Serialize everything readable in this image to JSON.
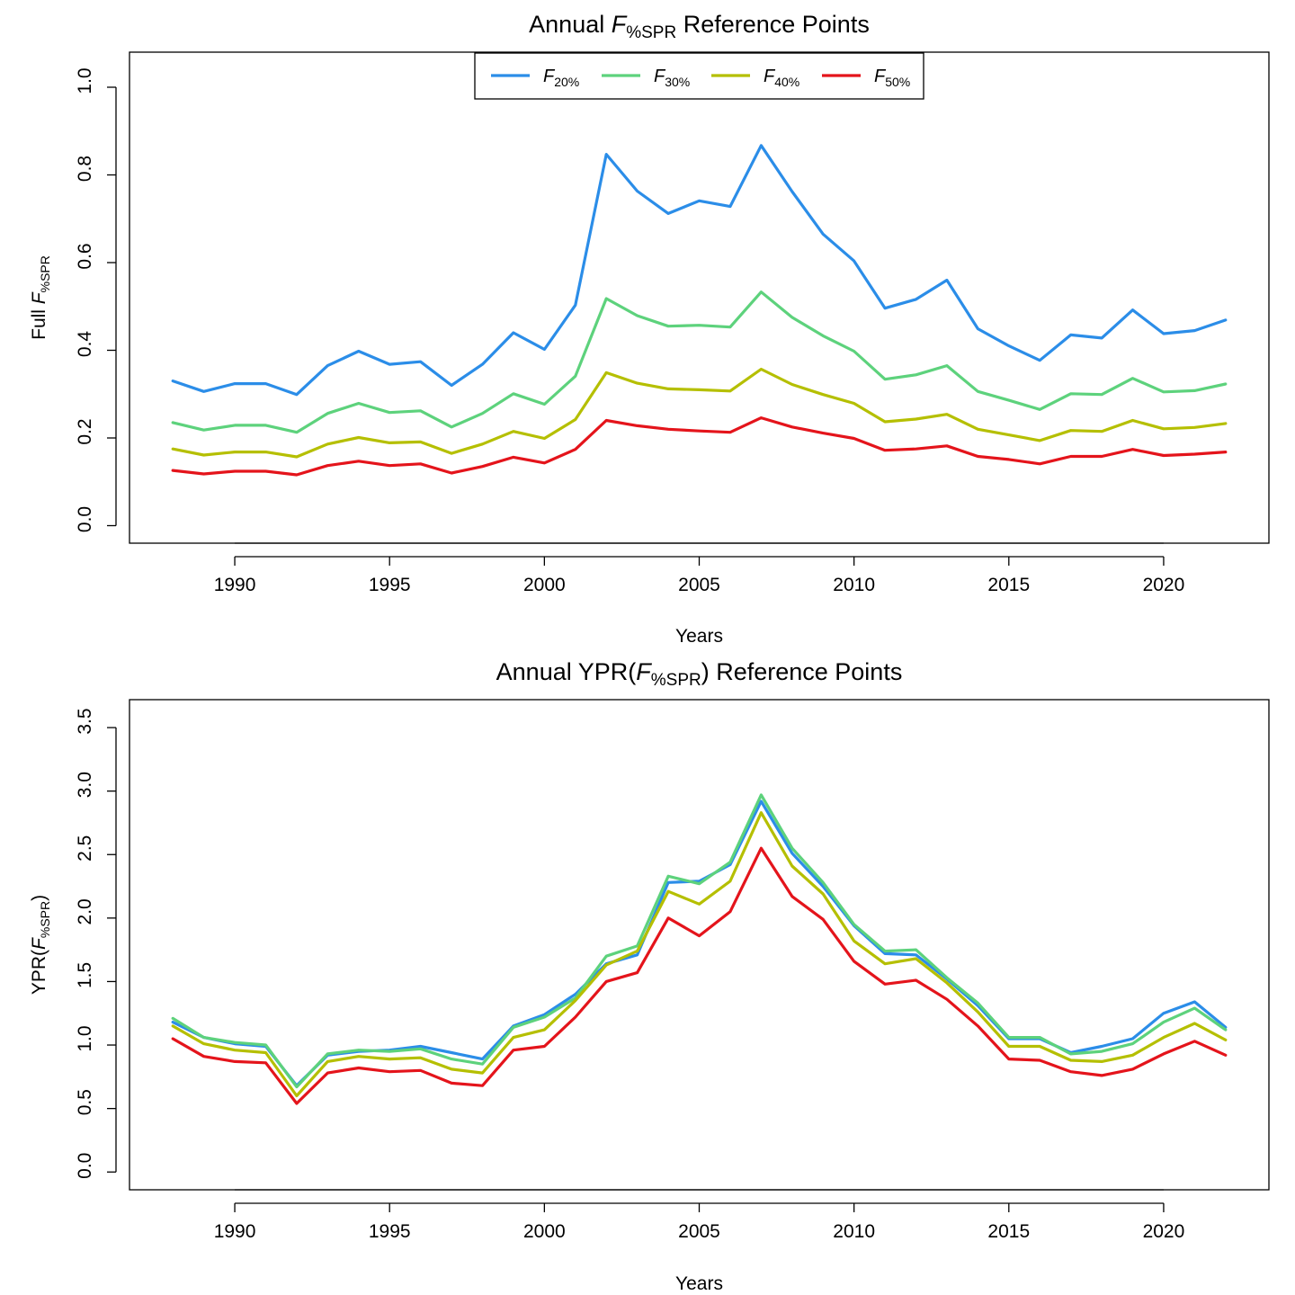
{
  "colors": {
    "F20": "#2B8DE8",
    "F30": "#5DD27C",
    "F40": "#B5BF00",
    "F50": "#E4141B"
  },
  "chart_data": [
    {
      "type": "line",
      "title_prefix": "Annual ",
      "title_italic": "F",
      "title_sub": "%SPR",
      "title_suffix": " Reference Points",
      "xlabel": "Years",
      "ylabel_prefix": "Full ",
      "ylabel_italic": "F",
      "ylabel_sub": "%SPR",
      "ylabel_suffix": "",
      "xlim": [
        1986.6,
        2023.4
      ],
      "ylim": [
        -0.04,
        1.08
      ],
      "xticks": [
        1990,
        1995,
        2000,
        2005,
        2010,
        2015,
        2020
      ],
      "xtick_labels": [
        "1990",
        "1995",
        "2000",
        "2005",
        "2010",
        "2015",
        "2020"
      ],
      "yticks": [
        0.0,
        0.2,
        0.4,
        0.6,
        0.8,
        1.0
      ],
      "ytick_labels": [
        "0.0",
        "0.2",
        "0.4",
        "0.6",
        "0.8",
        "1.0"
      ],
      "legend": "top-center",
      "x": [
        1988,
        1989,
        1990,
        1991,
        1992,
        1993,
        1994,
        1995,
        1996,
        1997,
        1998,
        1999,
        2000,
        2001,
        2002,
        2003,
        2004,
        2005,
        2006,
        2007,
        2008,
        2009,
        2010,
        2011,
        2012,
        2013,
        2014,
        2015,
        2016,
        2017,
        2018,
        2019,
        2020,
        2021,
        2022
      ],
      "series": [
        {
          "name_italic": "F",
          "name_sub": "20%",
          "color_key": "F20",
          "values": [
            0.33,
            0.306,
            0.324,
            0.324,
            0.299,
            0.365,
            0.398,
            0.368,
            0.374,
            0.32,
            0.368,
            0.44,
            0.402,
            0.503,
            0.847,
            0.763,
            0.712,
            0.741,
            0.728,
            0.867,
            0.762,
            0.665,
            0.604,
            0.496,
            0.516,
            0.56,
            0.449,
            0.41,
            0.377,
            0.435,
            0.428,
            0.492,
            0.438,
            0.445,
            0.469
          ]
        },
        {
          "name_italic": "F",
          "name_sub": "30%",
          "color_key": "F30",
          "values": [
            0.235,
            0.218,
            0.229,
            0.229,
            0.213,
            0.256,
            0.279,
            0.258,
            0.262,
            0.225,
            0.256,
            0.301,
            0.277,
            0.341,
            0.518,
            0.479,
            0.455,
            0.457,
            0.453,
            0.533,
            0.475,
            0.433,
            0.398,
            0.334,
            0.344,
            0.365,
            0.306,
            0.286,
            0.265,
            0.301,
            0.299,
            0.336,
            0.305,
            0.308,
            0.323
          ]
        },
        {
          "name_italic": "F",
          "name_sub": "40%",
          "color_key": "F40",
          "values": [
            0.175,
            0.161,
            0.168,
            0.168,
            0.157,
            0.186,
            0.201,
            0.189,
            0.191,
            0.165,
            0.186,
            0.215,
            0.199,
            0.242,
            0.349,
            0.325,
            0.312,
            0.31,
            0.307,
            0.357,
            0.322,
            0.299,
            0.279,
            0.237,
            0.243,
            0.254,
            0.22,
            0.207,
            0.194,
            0.217,
            0.215,
            0.24,
            0.221,
            0.224,
            0.233
          ]
        },
        {
          "name_italic": "F",
          "name_sub": "50%",
          "color_key": "F50",
          "values": [
            0.126,
            0.118,
            0.124,
            0.124,
            0.116,
            0.137,
            0.147,
            0.137,
            0.141,
            0.12,
            0.135,
            0.156,
            0.143,
            0.174,
            0.24,
            0.228,
            0.22,
            0.216,
            0.213,
            0.246,
            0.225,
            0.211,
            0.199,
            0.172,
            0.175,
            0.182,
            0.158,
            0.151,
            0.141,
            0.158,
            0.158,
            0.174,
            0.16,
            0.163,
            0.168
          ]
        }
      ]
    },
    {
      "type": "line",
      "title_prefix": "Annual YPR(",
      "title_italic": "F",
      "title_sub": "%SPR",
      "title_suffix": ") Reference Points",
      "xlabel": "Years",
      "ylabel_prefix": "YPR(",
      "ylabel_italic": "F",
      "ylabel_sub": "%SPR",
      "ylabel_suffix": ")",
      "xlim": [
        1986.6,
        2023.4
      ],
      "ylim": [
        -0.14,
        3.72
      ],
      "xticks": [
        1990,
        1995,
        2000,
        2005,
        2010,
        2015,
        2020
      ],
      "xtick_labels": [
        "1990",
        "1995",
        "2000",
        "2005",
        "2010",
        "2015",
        "2020"
      ],
      "yticks": [
        0.0,
        0.5,
        1.0,
        1.5,
        2.0,
        2.5,
        3.0,
        3.5
      ],
      "ytick_labels": [
        "0.0",
        "0.5",
        "1.0",
        "1.5",
        "2.0",
        "2.5",
        "3.0",
        "3.5"
      ],
      "x": [
        1988,
        1989,
        1990,
        1991,
        1992,
        1993,
        1994,
        1995,
        1996,
        1997,
        1998,
        1999,
        2000,
        2001,
        2002,
        2003,
        2004,
        2005,
        2006,
        2007,
        2008,
        2009,
        2010,
        2011,
        2012,
        2013,
        2014,
        2015,
        2016,
        2017,
        2018,
        2019,
        2020,
        2021,
        2022
      ],
      "series": [
        {
          "color_key": "F20",
          "values": [
            1.18,
            1.06,
            1.01,
            0.99,
            0.68,
            0.92,
            0.95,
            0.96,
            0.99,
            0.94,
            0.89,
            1.15,
            1.24,
            1.4,
            1.64,
            1.71,
            2.28,
            2.29,
            2.42,
            2.92,
            2.51,
            2.25,
            1.94,
            1.72,
            1.71,
            1.52,
            1.31,
            1.05,
            1.05,
            0.94,
            0.99,
            1.05,
            1.25,
            1.34,
            1.14
          ]
        },
        {
          "color_key": "F30",
          "values": [
            1.21,
            1.06,
            1.02,
            1.0,
            0.67,
            0.93,
            0.96,
            0.95,
            0.97,
            0.89,
            0.85,
            1.14,
            1.22,
            1.37,
            1.7,
            1.78,
            2.33,
            2.27,
            2.44,
            2.97,
            2.55,
            2.28,
            1.95,
            1.74,
            1.75,
            1.53,
            1.33,
            1.06,
            1.06,
            0.93,
            0.95,
            1.01,
            1.18,
            1.29,
            1.12
          ]
        },
        {
          "color_key": "F40",
          "values": [
            1.15,
            1.01,
            0.96,
            0.94,
            0.6,
            0.87,
            0.91,
            0.89,
            0.9,
            0.81,
            0.78,
            1.06,
            1.12,
            1.35,
            1.63,
            1.74,
            2.21,
            2.11,
            2.29,
            2.83,
            2.41,
            2.19,
            1.82,
            1.64,
            1.68,
            1.49,
            1.26,
            0.99,
            0.99,
            0.88,
            0.87,
            0.92,
            1.06,
            1.17,
            1.04
          ]
        },
        {
          "color_key": "F50",
          "values": [
            1.05,
            0.91,
            0.87,
            0.86,
            0.54,
            0.78,
            0.82,
            0.79,
            0.8,
            0.7,
            0.68,
            0.96,
            0.99,
            1.22,
            1.5,
            1.57,
            2.0,
            1.86,
            2.05,
            2.55,
            2.17,
            1.99,
            1.66,
            1.48,
            1.51,
            1.36,
            1.15,
            0.89,
            0.88,
            0.79,
            0.76,
            0.81,
            0.93,
            1.03,
            0.92
          ]
        }
      ]
    }
  ]
}
